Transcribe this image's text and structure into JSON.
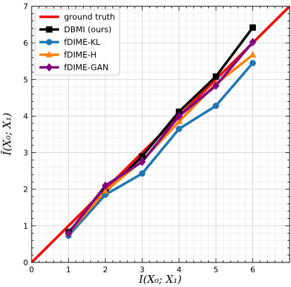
{
  "chart_data": {
    "type": "line",
    "title": "",
    "xlabel": "I(X₀; X₁)",
    "ylabel": "Î(X₀; X₁)",
    "xlim": [
      0,
      7
    ],
    "ylim": [
      0,
      7
    ],
    "x_ticks": [
      0,
      1,
      2,
      3,
      4,
      5,
      6
    ],
    "y_ticks": [
      0,
      1,
      2,
      3,
      4,
      5,
      6,
      7
    ],
    "grid": true,
    "legend_position": "top-left",
    "series": [
      {
        "name": "ground truth",
        "color": "#ee1111",
        "marker": "none",
        "x": [
          0,
          7
        ],
        "y": [
          0,
          7
        ]
      },
      {
        "name": "DBMI (ours)",
        "color": "#000000",
        "marker": "square",
        "x": [
          1,
          2,
          3,
          4,
          5,
          6
        ],
        "y": [
          0.83,
          1.92,
          2.9,
          4.12,
          5.08,
          6.42
        ]
      },
      {
        "name": "fDIME-KL",
        "color": "#1f77b4",
        "marker": "circle",
        "x": [
          1,
          2,
          3,
          4,
          5,
          6
        ],
        "y": [
          0.73,
          1.85,
          2.43,
          3.65,
          4.28,
          5.45
        ]
      },
      {
        "name": "fDIME-H",
        "color": "#ff7f0e",
        "marker": "triangle",
        "x": [
          1,
          2,
          3,
          4,
          5,
          6
        ],
        "y": [
          0.8,
          1.95,
          2.78,
          3.85,
          4.88,
          5.67
        ]
      },
      {
        "name": "fDIME-GAN",
        "color": "#800080",
        "marker": "diamond",
        "x": [
          1,
          2,
          3,
          4,
          5,
          6
        ],
        "y": [
          0.8,
          2.1,
          2.75,
          4.0,
          4.83,
          6.02
        ]
      }
    ]
  }
}
